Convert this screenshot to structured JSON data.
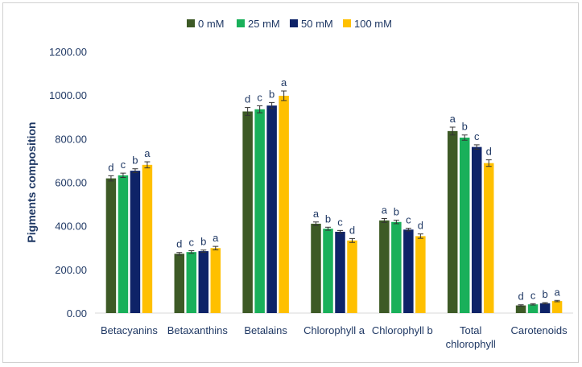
{
  "chart_data": {
    "type": "bar",
    "ylabel": "Pigments composition",
    "xlabel": "",
    "ylim": [
      0,
      1200
    ],
    "yticks": [
      "0.00",
      "200.00",
      "400.00",
      "600.00",
      "800.00",
      "1000.00",
      "1200.00"
    ],
    "categories": [
      [
        "Betacyanins"
      ],
      [
        "Betaxanthins"
      ],
      [
        "Betalains"
      ],
      [
        "Chlorophyll a"
      ],
      [
        "Chlorophyll b"
      ],
      [
        "Total",
        "chlorophyll"
      ],
      [
        "Carotenoids"
      ]
    ],
    "legend_position": "top",
    "grid": false,
    "series": [
      {
        "name": "0 mM",
        "color": "#3d5a26",
        "values": [
          618,
          272,
          925,
          410,
          425,
          835,
          35
        ],
        "errors": [
          12,
          6,
          18,
          8,
          9,
          18,
          3
        ],
        "letters": [
          "d",
          "d",
          "d",
          "a",
          "a",
          "a",
          "d"
        ]
      },
      {
        "name": "25 mM",
        "color": "#19b05a",
        "values": [
          632,
          280,
          935,
          387,
          418,
          805,
          40
        ],
        "errors": [
          10,
          6,
          16,
          7,
          8,
          12,
          3
        ],
        "letters": [
          "c",
          "c",
          "c",
          "b",
          "b",
          "b",
          "c"
        ]
      },
      {
        "name": "50 mM",
        "color": "#0e2368",
        "values": [
          653,
          284,
          952,
          373,
          383,
          762,
          45
        ],
        "errors": [
          9,
          5,
          14,
          6,
          6,
          10,
          3
        ],
        "letters": [
          "b",
          "b",
          "b",
          "c",
          "c",
          "c",
          "b"
        ]
      },
      {
        "name": "100 mM",
        "color": "#ffc000",
        "values": [
          680,
          298,
          997,
          333,
          353,
          688,
          55
        ],
        "errors": [
          14,
          8,
          22,
          9,
          10,
          15,
          3
        ],
        "letters": [
          "a",
          "a",
          "a",
          "d",
          "d",
          "d",
          "a"
        ]
      }
    ]
  }
}
